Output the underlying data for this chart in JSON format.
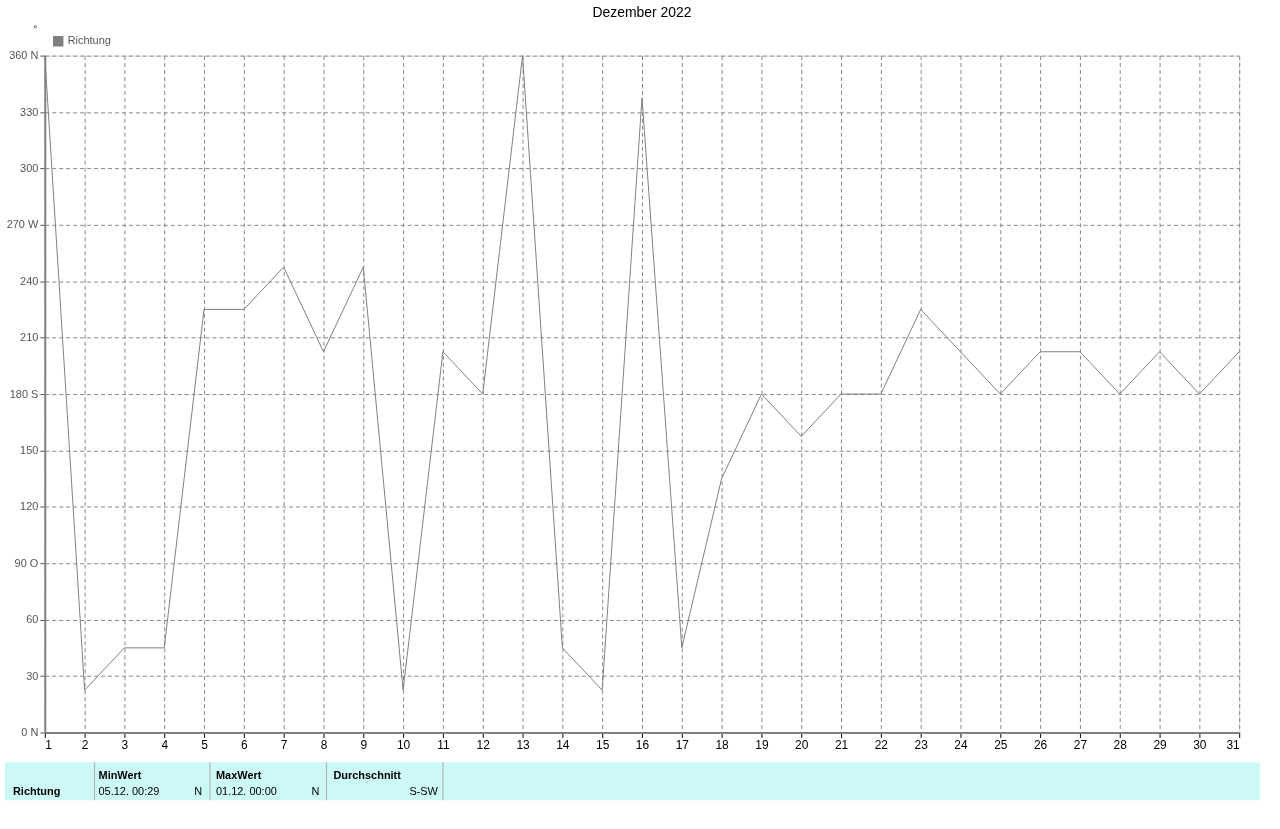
{
  "chart_data": {
    "type": "line",
    "title": "Dezember 2022",
    "ylabel": "°",
    "x": [
      1,
      2,
      3,
      4,
      5,
      6,
      7,
      8,
      9,
      10,
      11,
      12,
      13,
      14,
      15,
      16,
      17,
      18,
      19,
      20,
      21,
      22,
      23,
      24,
      25,
      26,
      27,
      28,
      29,
      30,
      31
    ],
    "series": [
      {
        "name": "Richtung",
        "color": "#808080",
        "values": [
          360,
          22.5,
          45,
          45,
          225,
          225,
          247.5,
          202.5,
          247.5,
          22.5,
          202.5,
          180,
          360,
          45,
          22.5,
          337.5,
          45,
          135,
          180,
          157.5,
          180,
          180,
          225,
          202.5,
          180,
          202.5,
          202.5,
          180,
          202.5,
          180,
          202.5
        ]
      }
    ],
    "xlim": [
      1,
      31
    ],
    "xticks": [
      1,
      2,
      3,
      4,
      5,
      6,
      7,
      8,
      9,
      10,
      11,
      12,
      13,
      14,
      15,
      16,
      17,
      18,
      19,
      20,
      21,
      22,
      23,
      24,
      25,
      26,
      27,
      28,
      29,
      30,
      31
    ],
    "ylim": [
      0,
      360
    ],
    "yticks": [
      {
        "value": 0,
        "label": "0   N"
      },
      30,
      60,
      {
        "value": 90,
        "label": "90  O"
      },
      120,
      150,
      {
        "value": 180,
        "label": "180 S"
      },
      210,
      240,
      {
        "value": 270,
        "label": "270 W"
      },
      300,
      330,
      {
        "value": 360,
        "label": "360 N"
      }
    ],
    "grid": true,
    "line_style": "solid",
    "marker": "none",
    "legend": "top left",
    "annotations": [
      "Richtung",
      "MinWert",
      "05.12.  00:29",
      "N",
      "MaxWert",
      "01.12.  00:00",
      "N",
      "Durchschnitt",
      "S-SW"
    ]
  }
}
